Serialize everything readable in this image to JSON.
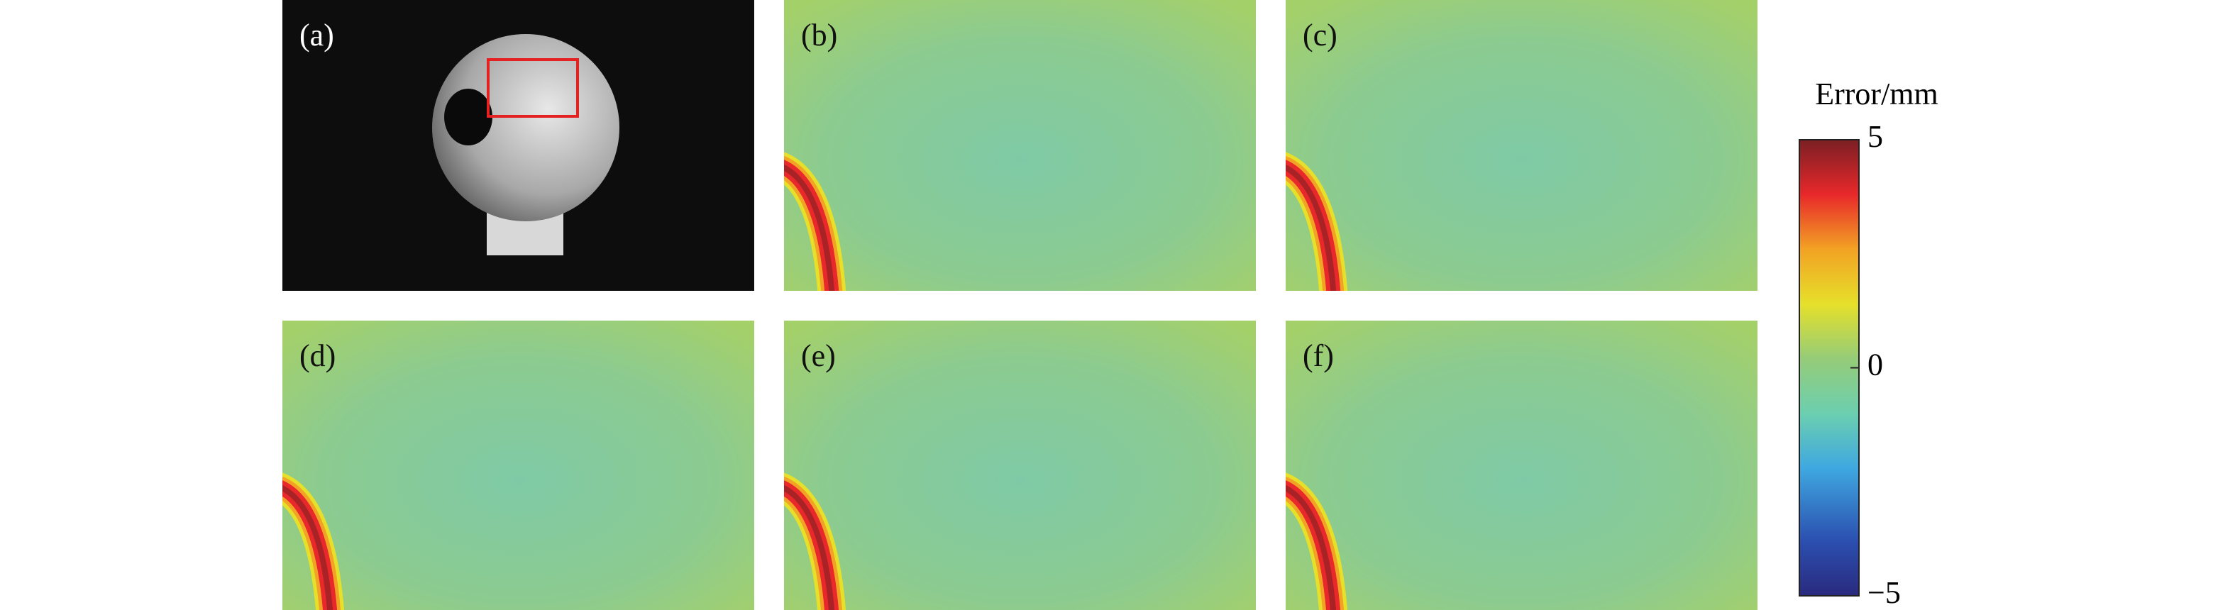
{
  "panels": [
    {
      "label": "(a)"
    },
    {
      "label": "(b)"
    },
    {
      "label": "(c)"
    },
    {
      "label": "(d)"
    },
    {
      "label": "(e)"
    },
    {
      "label": "(f)"
    }
  ],
  "colorbar": {
    "title": "Error/mm",
    "lim": [
      -5,
      5
    ],
    "ticks": [
      5,
      0,
      {
        "value": -5,
        "label": "−5"
      }
    ]
  }
}
